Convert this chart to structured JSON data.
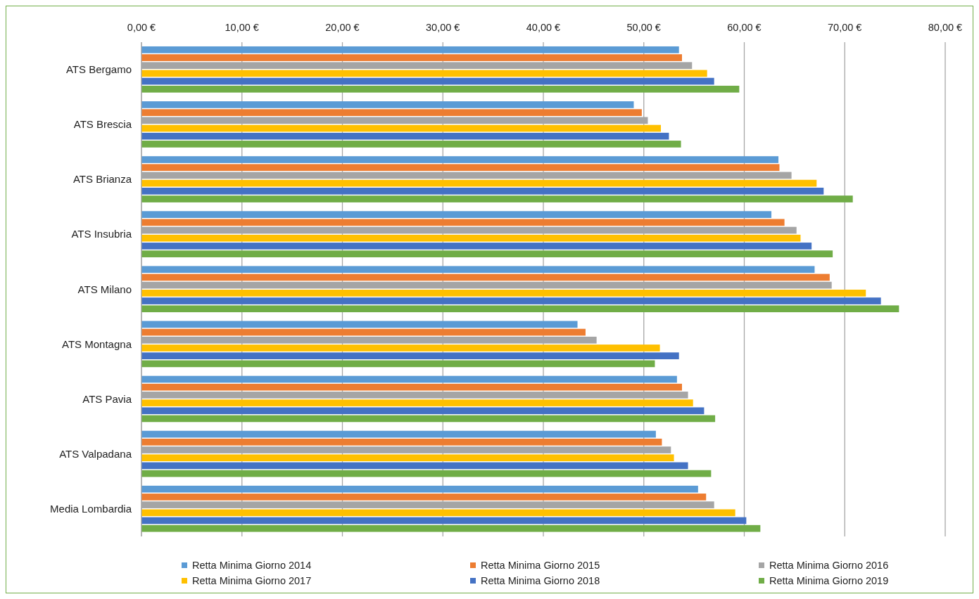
{
  "chart_data": {
    "type": "bar",
    "orientation": "horizontal",
    "categories": [
      "ATS Bergamo",
      "ATS Brescia",
      "ATS Brianza",
      "ATS Insubria",
      "ATS Milano",
      "ATS Montagna",
      "ATS Pavia",
      "ATS Valpadana",
      "Media Lombardia"
    ],
    "series": [
      {
        "name": "Retta Minima Giorno 2014",
        "color": "#5b9bd5",
        "values": [
          53.5,
          49.0,
          63.4,
          62.7,
          67.0,
          43.4,
          53.3,
          51.2,
          55.4
        ]
      },
      {
        "name": "Retta Minima Giorno 2015",
        "color": "#ed7d31",
        "values": [
          53.8,
          49.8,
          63.5,
          64.0,
          68.5,
          44.2,
          53.8,
          51.8,
          56.2
        ]
      },
      {
        "name": "Retta Minima Giorno 2016",
        "color": "#a5a5a5",
        "values": [
          54.8,
          50.4,
          64.7,
          65.2,
          68.7,
          45.3,
          54.4,
          52.7,
          57.0
        ]
      },
      {
        "name": "Retta Minima Giorno 2017",
        "color": "#ffc000",
        "values": [
          56.3,
          51.7,
          67.2,
          65.6,
          72.1,
          51.6,
          54.9,
          53.0,
          59.1
        ]
      },
      {
        "name": "Retta Minima Giorno 2018",
        "color": "#4472c4",
        "values": [
          57.0,
          52.5,
          67.9,
          66.7,
          73.6,
          53.5,
          56.0,
          54.4,
          60.2
        ]
      },
      {
        "name": "Retta Minima Giorno 2019",
        "color": "#70ad47",
        "values": [
          59.5,
          53.7,
          70.8,
          68.8,
          75.4,
          51.1,
          57.1,
          56.7,
          61.6
        ]
      }
    ],
    "xlim": [
      0,
      80
    ],
    "xticks": [
      {
        "value": 0,
        "label": "0,00 €"
      },
      {
        "value": 10,
        "label": "10,00 €"
      },
      {
        "value": 20,
        "label": "20,00 €"
      },
      {
        "value": 30,
        "label": "30,00 €"
      },
      {
        "value": 40,
        "label": "40,00 €"
      },
      {
        "value": 50,
        "label": "50,00 €"
      },
      {
        "value": 60,
        "label": "60,00 €"
      },
      {
        "value": 70,
        "label": "70,00 €"
      },
      {
        "value": 80,
        "label": "80,00 €"
      }
    ],
    "grid": "x",
    "legend": "bottom"
  }
}
